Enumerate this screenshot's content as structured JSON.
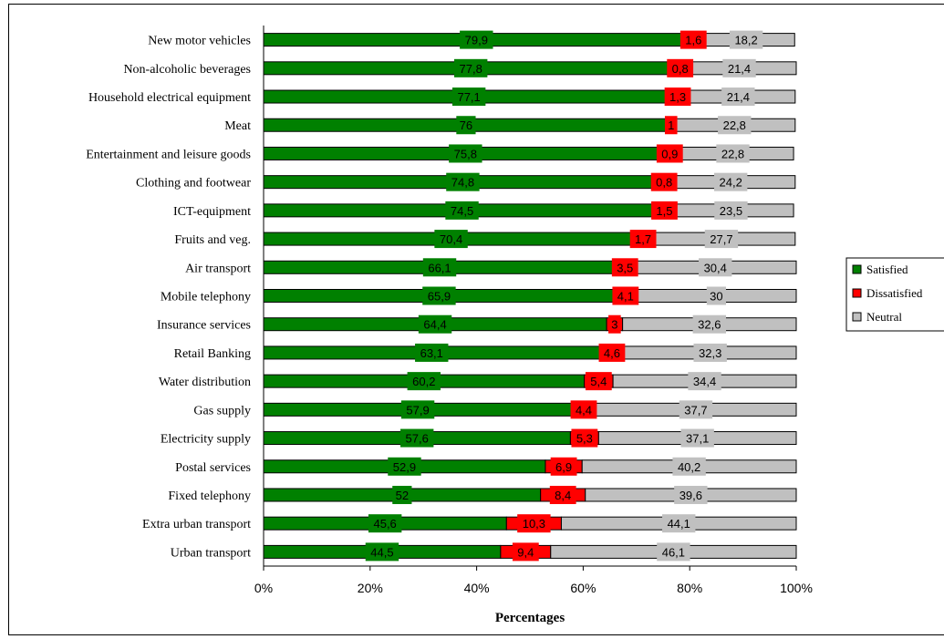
{
  "chart_data": {
    "type": "bar",
    "orientation": "horizontal",
    "stacked": "percent",
    "categories": [
      "New motor vehicles",
      "Non-alcoholic beverages",
      "Household electrical equipment",
      "Meat",
      "Entertainment and leisure goods",
      "Clothing and footwear",
      "ICT-equipment",
      "Fruits and veg.",
      "Air transport",
      "Mobile telephony",
      "Insurance services",
      "Retail Banking",
      "Water distribution",
      "Gas supply",
      "Electricity supply",
      "Postal services",
      "Fixed telephony",
      "Extra urban transport",
      "Urban transport"
    ],
    "series": [
      {
        "name": "Satisfied",
        "color": "#008000",
        "values": [
          79.9,
          77.8,
          77.1,
          76,
          75.8,
          74.8,
          74.5,
          70.4,
          66.1,
          65.9,
          64.4,
          63.1,
          60.2,
          57.9,
          57.6,
          52.9,
          52,
          45.6,
          44.5
        ],
        "labels": [
          "79,9",
          "77,8",
          "77,1",
          "76",
          "75,8",
          "74,8",
          "74,5",
          "70,4",
          "66,1",
          "65,9",
          "64,4",
          "63,1",
          "60,2",
          "57,9",
          "57,6",
          "52,9",
          "52",
          "45,6",
          "44,5"
        ]
      },
      {
        "name": "Dissatisfied",
        "color": "#ff0000",
        "values": [
          1.6,
          0.8,
          1.3,
          1,
          0.9,
          0.8,
          1.5,
          1.7,
          3.5,
          4.1,
          3,
          4.6,
          5.4,
          4.4,
          5.3,
          6.9,
          8.4,
          10.3,
          9.4
        ],
        "labels": [
          "1,6",
          "0,8",
          "1,3",
          "1",
          "0,9",
          "0,8",
          "1,5",
          "1,7",
          "3,5",
          "4,1",
          "3",
          "4,6",
          "5,4",
          "4,4",
          "5,3",
          "6,9",
          "8,4",
          "10,3",
          "9,4"
        ]
      },
      {
        "name": "Neutral",
        "color": "#c0c0c0",
        "values": [
          18.2,
          21.4,
          21.4,
          22.8,
          22.8,
          24.2,
          23.5,
          27.7,
          30.4,
          30,
          32.6,
          32.3,
          34.4,
          37.7,
          37.1,
          40.2,
          39.6,
          44.1,
          46.1
        ],
        "labels": [
          "18,2",
          "21,4",
          "21,4",
          "22,8",
          "22,8",
          "24,2",
          "23,5",
          "27,7",
          "30,4",
          "30",
          "32,6",
          "32,3",
          "34,4",
          "37,7",
          "37,1",
          "40,2",
          "39,6",
          "44,1",
          "46,1"
        ]
      }
    ],
    "xlabel": "Percentages",
    "xticks": [
      "0%",
      "20%",
      "40%",
      "60%",
      "80%",
      "100%"
    ],
    "xlim": [
      0,
      100
    ],
    "grid": false,
    "legend": "right"
  }
}
